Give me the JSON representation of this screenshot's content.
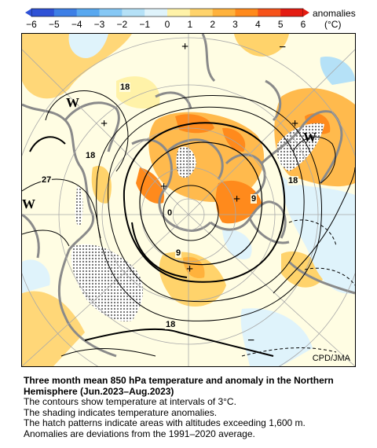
{
  "colorbar": {
    "unit_label": "anomalies",
    "unit": "(°C)",
    "ticks": [
      "−6",
      "−5",
      "−4",
      "−3",
      "−2",
      "−1",
      "0",
      "1",
      "2",
      "3",
      "4",
      "5",
      "6"
    ],
    "colors": [
      "#2f52d6",
      "#3d7fe6",
      "#58a8f0",
      "#86c8f5",
      "#b5e1f7",
      "#dff3fb",
      "#fffde3",
      "#fff2a8",
      "#ffd36b",
      "#ffb23c",
      "#ff8a1c",
      "#f6531a",
      "#e41c12"
    ]
  },
  "map": {
    "contour_labels": [
      "18",
      "18",
      "27",
      "18",
      "9",
      "0",
      "9",
      "18"
    ],
    "high_marks": [
      "+",
      "+",
      "+",
      "+",
      "+",
      "+"
    ],
    "low_marks": [
      "−",
      "−"
    ],
    "warm_labels": [
      "W",
      "W",
      "W"
    ],
    "credit": "CPD/JMA"
  },
  "caption": {
    "title": "Three month mean 850 hPa temperature and anomaly in the Northern Hemisphere (Jun.2023–Aug.2023)",
    "lines": [
      "The contours show temperature at intervals of 3°C.",
      "The shading indicates temperature anomalies.",
      "The hatch patterns indicate areas with altitudes exceeding 1,600 m.",
      "Anomalies are deviations from the 1991–2020 average."
    ]
  }
}
